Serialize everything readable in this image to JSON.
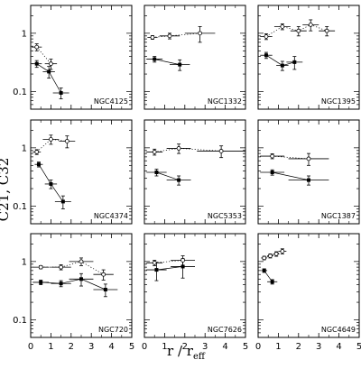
{
  "figure": {
    "ylabel": "C21, C32",
    "xlabel": {
      "main": "r / r",
      "sub": "eff"
    }
  },
  "chart_data": [
    {
      "type": "scatter",
      "log_y": true,
      "galaxy": "NGC4125",
      "xlim": [
        0,
        5
      ],
      "ylim": [
        0.05,
        3
      ],
      "x_ticks": [
        0,
        1,
        2,
        3,
        4,
        5
      ],
      "y_ticks": [
        0.1,
        1
      ],
      "y_tick_labels": [
        "0.1",
        "1"
      ],
      "show_x_tick_labels": false,
      "show_y_tick_labels": true,
      "series": [
        {
          "name": "C21",
          "marker": "filled-square",
          "linestyle": "solid",
          "points": [
            {
              "x": 0.3,
              "y": 0.3,
              "xerr": 0.25,
              "yerr": 0.04
            },
            {
              "x": 0.9,
              "y": 0.22,
              "xerr": 0.3,
              "yerr": 0.05
            },
            {
              "x": 1.5,
              "y": 0.095,
              "xerr": 0.4,
              "yerr": 0.02
            }
          ]
        },
        {
          "name": "C32",
          "marker": "open-circle",
          "linestyle": "dotted",
          "points": [
            {
              "x": 0.3,
              "y": 0.58,
              "xerr": 0.25,
              "yerr": 0.08
            },
            {
              "x": 1.0,
              "y": 0.3,
              "xerr": 0.3,
              "yerr": 0.06
            }
          ]
        }
      ]
    },
    {
      "type": "scatter",
      "log_y": true,
      "galaxy": "NGC1332",
      "xlim": [
        0,
        10
      ],
      "ylim": [
        0.05,
        3
      ],
      "x_ticks": [
        0,
        2,
        4,
        6,
        8,
        10
      ],
      "y_ticks": [
        0.1,
        1
      ],
      "show_x_tick_labels": false,
      "show_y_tick_labels": false,
      "series": [
        {
          "name": "C21",
          "marker": "filled-square",
          "linestyle": "solid",
          "points": [
            {
              "x": 1.0,
              "y": 0.36,
              "xerr": 0.8,
              "yerr": 0.04
            },
            {
              "x": 3.5,
              "y": 0.29,
              "xerr": 1.0,
              "yerr": 0.06
            }
          ]
        },
        {
          "name": "C32",
          "marker": "open-circle",
          "linestyle": "dotted",
          "points": [
            {
              "x": 0.8,
              "y": 0.85,
              "xerr": 0.5,
              "yerr": 0.06
            },
            {
              "x": 2.5,
              "y": 0.9,
              "xerr": 1.0,
              "yerr": 0.1
            },
            {
              "x": 5.5,
              "y": 1.0,
              "xerr": 1.5,
              "yerr": 0.3
            }
          ]
        }
      ]
    },
    {
      "type": "scatter",
      "log_y": true,
      "galaxy": "NGC1395",
      "xlim": [
        0,
        5
      ],
      "ylim": [
        0.05,
        3
      ],
      "x_ticks": [
        0,
        1,
        2,
        3,
        4,
        5
      ],
      "y_ticks": [
        0.1,
        1
      ],
      "show_x_tick_labels": false,
      "show_y_tick_labels": false,
      "series": [
        {
          "name": "C21",
          "marker": "filled-square",
          "linestyle": "solid",
          "points": [
            {
              "x": 0.4,
              "y": 0.42,
              "xerr": 0.3,
              "yerr": 0.05
            },
            {
              "x": 1.2,
              "y": 0.28,
              "xerr": 0.3,
              "yerr": 0.05
            },
            {
              "x": 1.8,
              "y": 0.32,
              "xerr": 0.4,
              "yerr": 0.08
            }
          ]
        },
        {
          "name": "C32",
          "marker": "open-circle",
          "linestyle": "dotted",
          "points": [
            {
              "x": 0.4,
              "y": 0.88,
              "xerr": 0.3,
              "yerr": 0.1
            },
            {
              "x": 1.2,
              "y": 1.3,
              "xerr": 0.4,
              "yerr": 0.15
            },
            {
              "x": 2.0,
              "y": 1.1,
              "xerr": 0.4,
              "yerr": 0.2
            },
            {
              "x": 2.6,
              "y": 1.4,
              "xerr": 0.4,
              "yerr": 0.3
            },
            {
              "x": 3.4,
              "y": 1.1,
              "xerr": 0.4,
              "yerr": 0.2
            }
          ]
        }
      ]
    },
    {
      "type": "scatter",
      "log_y": true,
      "galaxy": "NGC4374",
      "xlim": [
        0,
        5
      ],
      "ylim": [
        0.05,
        3
      ],
      "x_ticks": [
        0,
        1,
        2,
        3,
        4,
        5
      ],
      "y_ticks": [
        0.1,
        1
      ],
      "y_tick_labels": [
        "0.1",
        "1"
      ],
      "show_x_tick_labels": false,
      "show_y_tick_labels": true,
      "series": [
        {
          "name": "C21",
          "marker": "filled-square",
          "linestyle": "solid",
          "points": [
            {
              "x": 0.4,
              "y": 0.52,
              "xerr": 0.2,
              "yerr": 0.05
            },
            {
              "x": 1.0,
              "y": 0.24,
              "xerr": 0.3,
              "yerr": 0.04
            },
            {
              "x": 1.6,
              "y": 0.12,
              "xerr": 0.4,
              "yerr": 0.03
            }
          ]
        },
        {
          "name": "C32",
          "marker": "open-circle",
          "linestyle": "dotted",
          "points": [
            {
              "x": 0.3,
              "y": 0.85,
              "xerr": 0.2,
              "yerr": 0.08
            },
            {
              "x": 1.0,
              "y": 1.4,
              "xerr": 0.4,
              "yerr": 0.25
            },
            {
              "x": 1.8,
              "y": 1.3,
              "xerr": 0.4,
              "yerr": 0.3
            }
          ]
        }
      ]
    },
    {
      "type": "scatter",
      "log_y": true,
      "galaxy": "NGC5353",
      "xlim": [
        0,
        5
      ],
      "ylim": [
        0.05,
        3
      ],
      "x_ticks": [
        0,
        1,
        2,
        3,
        4,
        5
      ],
      "y_ticks": [
        0.1,
        1
      ],
      "show_x_tick_labels": false,
      "show_y_tick_labels": false,
      "series": [
        {
          "name": "C21",
          "marker": "filled-square",
          "linestyle": "solid",
          "points": [
            {
              "x": 0.6,
              "y": 0.38,
              "xerr": 0.5,
              "yerr": 0.05
            },
            {
              "x": 1.7,
              "y": 0.28,
              "xerr": 0.6,
              "yerr": 0.05
            }
          ]
        },
        {
          "name": "C32",
          "marker": "open-circle",
          "linestyle": "dotted",
          "points": [
            {
              "x": 0.5,
              "y": 0.85,
              "xerr": 0.4,
              "yerr": 0.1
            },
            {
              "x": 1.7,
              "y": 0.98,
              "xerr": 0.6,
              "yerr": 0.18
            },
            {
              "x": 3.8,
              "y": 0.88,
              "xerr": 1.2,
              "yerr": 0.2
            }
          ]
        }
      ]
    },
    {
      "type": "scatter",
      "log_y": true,
      "galaxy": "NGC1387",
      "xlim": [
        0,
        5
      ],
      "ylim": [
        0.05,
        3
      ],
      "x_ticks": [
        0,
        1,
        2,
        3,
        4,
        5
      ],
      "y_ticks": [
        0.1,
        1
      ],
      "show_x_tick_labels": false,
      "show_y_tick_labels": false,
      "series": [
        {
          "name": "C21",
          "marker": "filled-square",
          "linestyle": "solid",
          "points": [
            {
              "x": 0.7,
              "y": 0.38,
              "xerr": 0.6,
              "yerr": 0.04
            },
            {
              "x": 2.5,
              "y": 0.28,
              "xerr": 1.0,
              "yerr": 0.05
            }
          ]
        },
        {
          "name": "C32",
          "marker": "open-circle",
          "linestyle": "dotted",
          "points": [
            {
              "x": 0.7,
              "y": 0.72,
              "xerr": 0.6,
              "yerr": 0.07
            },
            {
              "x": 2.5,
              "y": 0.65,
              "xerr": 1.0,
              "yerr": 0.15
            }
          ]
        }
      ]
    },
    {
      "type": "scatter",
      "log_y": true,
      "galaxy": "NGC720",
      "xlim": [
        0,
        5
      ],
      "ylim": [
        0.05,
        3
      ],
      "x_ticks": [
        0,
        1,
        2,
        3,
        4,
        5
      ],
      "y_ticks": [
        0.1,
        1
      ],
      "y_tick_labels": [
        "0.1",
        "1"
      ],
      "x_tick_labels": [
        "0",
        "1",
        "2",
        "3",
        "4",
        "5"
      ],
      "show_x_tick_labels": true,
      "show_y_tick_labels": true,
      "series": [
        {
          "name": "C21",
          "marker": "filled-square",
          "linestyle": "solid",
          "points": [
            {
              "x": 0.5,
              "y": 0.44,
              "xerr": 0.4,
              "yerr": 0.04
            },
            {
              "x": 1.5,
              "y": 0.42,
              "xerr": 0.5,
              "yerr": 0.05
            },
            {
              "x": 2.5,
              "y": 0.5,
              "xerr": 0.6,
              "yerr": 0.12
            },
            {
              "x": 3.7,
              "y": 0.33,
              "xerr": 0.6,
              "yerr": 0.08
            }
          ]
        },
        {
          "name": "C32",
          "marker": "open-circle",
          "linestyle": "dotted",
          "points": [
            {
              "x": 0.5,
              "y": 0.8,
              "xerr": 0.4,
              "yerr": 0.05
            },
            {
              "x": 1.5,
              "y": 0.8,
              "xerr": 0.5,
              "yerr": 0.08
            },
            {
              "x": 2.5,
              "y": 1.0,
              "xerr": 0.6,
              "yerr": 0.15
            },
            {
              "x": 3.6,
              "y": 0.6,
              "xerr": 0.5,
              "yerr": 0.12
            }
          ]
        }
      ]
    },
    {
      "type": "scatter",
      "log_y": true,
      "galaxy": "NGC7626",
      "xlim": [
        0,
        5
      ],
      "ylim": [
        0.05,
        3
      ],
      "x_ticks": [
        0,
        1,
        2,
        3,
        4,
        5
      ],
      "y_ticks": [
        0.1,
        1
      ],
      "x_tick_labels": [
        "0",
        "1",
        "2",
        "3",
        "4",
        "5"
      ],
      "show_x_tick_labels": true,
      "show_y_tick_labels": false,
      "series": [
        {
          "name": "C21",
          "marker": "filled-square",
          "linestyle": "solid",
          "points": [
            {
              "x": 0.6,
              "y": 0.72,
              "xerr": 0.5,
              "yerr": 0.25
            },
            {
              "x": 1.9,
              "y": 0.82,
              "xerr": 0.6,
              "yerr": 0.3
            }
          ]
        },
        {
          "name": "C32",
          "marker": "open-circle",
          "linestyle": "dotted",
          "points": [
            {
              "x": 0.5,
              "y": 0.95,
              "xerr": 0.4,
              "yerr": 0.1
            },
            {
              "x": 1.9,
              "y": 1.05,
              "xerr": 0.6,
              "yerr": 0.2
            }
          ]
        }
      ]
    },
    {
      "type": "scatter",
      "log_y": true,
      "galaxy": "NGC4649",
      "xlim": [
        0,
        5
      ],
      "ylim": [
        0.05,
        3
      ],
      "x_ticks": [
        0,
        1,
        2,
        3,
        4,
        5
      ],
      "y_ticks": [
        0.1,
        1
      ],
      "x_tick_labels": [
        "0",
        "1",
        "2",
        "3",
        "4",
        "5"
      ],
      "show_x_tick_labels": true,
      "show_y_tick_labels": false,
      "series": [
        {
          "name": "C21",
          "marker": "filled-square",
          "linestyle": "solid",
          "points": [
            {
              "x": 0.3,
              "y": 0.7,
              "xerr": 0.15,
              "yerr": 0.05
            },
            {
              "x": 0.7,
              "y": 0.45,
              "xerr": 0.25,
              "yerr": 0.04
            }
          ]
        },
        {
          "name": "C32",
          "marker": "open-circle",
          "linestyle": "dotted",
          "points": [
            {
              "x": 0.3,
              "y": 1.15,
              "xerr": 0.15,
              "yerr": 0.08
            },
            {
              "x": 0.6,
              "y": 1.25,
              "xerr": 0.15,
              "yerr": 0.1
            },
            {
              "x": 0.9,
              "y": 1.35,
              "xerr": 0.15,
              "yerr": 0.12
            },
            {
              "x": 1.2,
              "y": 1.5,
              "xerr": 0.2,
              "yerr": 0.15
            }
          ]
        }
      ]
    }
  ]
}
